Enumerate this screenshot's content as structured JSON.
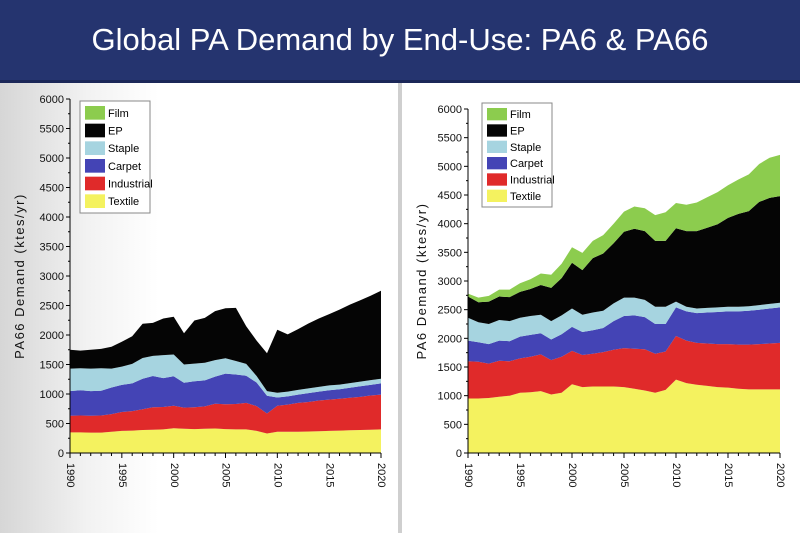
{
  "slide": {
    "title": "Global PA Demand by End-Use: PA6 & PA66"
  },
  "colors": {
    "banner": "#25346f",
    "Textile": "#f4f25f",
    "Industrial": "#e02a2a",
    "Carpet": "#4444b5",
    "Staple": "#a6d4e0",
    "EP": "#050505",
    "Film": "#8ccc4e"
  },
  "chart_data": [
    {
      "type": "area",
      "stacked": true,
      "title": "",
      "ylabel": "PA66 Demand (ktes/yr)",
      "xlabel": "",
      "ylim": [
        0,
        6000
      ],
      "yticks": [
        0,
        500,
        1000,
        1500,
        2000,
        2500,
        3000,
        3500,
        4000,
        4500,
        5000,
        5500,
        6000
      ],
      "xticks": [
        1990,
        1995,
        2000,
        2005,
        2010,
        2015,
        2020
      ],
      "legend": [
        "Film",
        "EP",
        "Staple",
        "Carpet",
        "Industrial",
        "Textile"
      ],
      "legend_position": "top-left",
      "x": [
        1990,
        1991,
        1992,
        1993,
        1994,
        1995,
        1996,
        1997,
        1998,
        1999,
        2000,
        2001,
        2002,
        2003,
        2004,
        2005,
        2006,
        2007,
        2008,
        2009,
        2010,
        2011,
        2012,
        2013,
        2014,
        2015,
        2016,
        2017,
        2018,
        2019,
        2020
      ],
      "series": [
        {
          "name": "Textile",
          "values": [
            350,
            350,
            345,
            345,
            360,
            375,
            380,
            390,
            395,
            400,
            420,
            410,
            405,
            410,
            415,
            405,
            400,
            400,
            375,
            330,
            360,
            360,
            360,
            365,
            370,
            375,
            380,
            385,
            390,
            395,
            400
          ]
        },
        {
          "name": "Industrial",
          "values": [
            280,
            285,
            285,
            290,
            300,
            320,
            330,
            350,
            380,
            380,
            380,
            360,
            370,
            380,
            420,
            420,
            430,
            450,
            420,
            340,
            440,
            460,
            490,
            500,
            520,
            530,
            540,
            550,
            560,
            580,
            590
          ]
        },
        {
          "name": "Carpet",
          "values": [
            420,
            430,
            420,
            420,
            450,
            460,
            470,
            520,
            530,
            490,
            500,
            420,
            440,
            440,
            460,
            520,
            500,
            460,
            400,
            300,
            140,
            140,
            140,
            150,
            150,
            160,
            160,
            170,
            180,
            180,
            190
          ]
        },
        {
          "name": "Staple",
          "values": [
            380,
            370,
            380,
            380,
            320,
            310,
            330,
            350,
            340,
            390,
            370,
            310,
            300,
            300,
            280,
            260,
            230,
            200,
            110,
            80,
            80,
            80,
            80,
            80,
            80,
            80,
            80,
            80,
            80,
            80,
            80
          ]
        },
        {
          "name": "EP",
          "values": [
            320,
            300,
            320,
            330,
            370,
            420,
            470,
            580,
            560,
            620,
            640,
            530,
            730,
            760,
            830,
            850,
            900,
            640,
            600,
            640,
            1070,
            970,
            1030,
            1100,
            1160,
            1210,
            1270,
            1330,
            1380,
            1430,
            1490
          ]
        },
        {
          "name": "Film",
          "values": [
            0,
            0,
            0,
            0,
            0,
            0,
            0,
            0,
            0,
            0,
            0,
            0,
            0,
            0,
            0,
            0,
            0,
            0,
            0,
            0,
            0,
            0,
            0,
            0,
            0,
            0,
            0,
            0,
            0,
            0,
            0
          ]
        }
      ]
    },
    {
      "type": "area",
      "stacked": true,
      "title": "",
      "ylabel": "PA6 Demand (ktes/yr)",
      "xlabel": "",
      "ylim": [
        0,
        6000
      ],
      "yticks": [
        0,
        500,
        1000,
        1500,
        2000,
        2500,
        3000,
        3500,
        4000,
        4500,
        5000,
        5500,
        6000
      ],
      "xticks": [
        1990,
        1995,
        2000,
        2005,
        2010,
        2015,
        2020
      ],
      "legend": [
        "Film",
        "EP",
        "Staple",
        "Carpet",
        "Industrial",
        "Textile"
      ],
      "legend_position": "top-left",
      "x": [
        1990,
        1991,
        1992,
        1993,
        1994,
        1995,
        1996,
        1997,
        1998,
        1999,
        2000,
        2001,
        2002,
        2003,
        2004,
        2005,
        2006,
        2007,
        2008,
        2009,
        2010,
        2011,
        2012,
        2013,
        2014,
        2015,
        2016,
        2017,
        2018,
        2019,
        2020
      ],
      "series": [
        {
          "name": "Textile",
          "values": [
            950,
            950,
            960,
            980,
            1000,
            1050,
            1060,
            1080,
            1020,
            1050,
            1200,
            1150,
            1160,
            1160,
            1160,
            1150,
            1120,
            1090,
            1050,
            1100,
            1280,
            1220,
            1190,
            1170,
            1150,
            1140,
            1120,
            1110,
            1110,
            1110,
            1110
          ]
        },
        {
          "name": "Industrial",
          "values": [
            650,
            640,
            600,
            630,
            600,
            600,
            620,
            640,
            600,
            630,
            580,
            560,
            570,
            600,
            640,
            680,
            700,
            720,
            680,
            670,
            760,
            740,
            730,
            740,
            750,
            760,
            770,
            780,
            790,
            800,
            810
          ]
        },
        {
          "name": "Carpet",
          "values": [
            360,
            340,
            340,
            350,
            350,
            380,
            380,
            370,
            360,
            390,
            420,
            400,
            410,
            420,
            500,
            560,
            580,
            560,
            520,
            480,
            500,
            510,
            520,
            540,
            560,
            570,
            580,
            590,
            600,
            610,
            620
          ]
        },
        {
          "name": "Staple",
          "values": [
            400,
            350,
            350,
            360,
            350,
            330,
            330,
            320,
            320,
            330,
            320,
            300,
            310,
            300,
            310,
            320,
            310,
            300,
            300,
            300,
            100,
            80,
            80,
            80,
            80,
            80,
            80,
            80,
            80,
            80,
            80
          ]
        },
        {
          "name": "EP",
          "values": [
            370,
            350,
            390,
            410,
            420,
            450,
            470,
            520,
            580,
            650,
            800,
            780,
            950,
            1000,
            1050,
            1150,
            1200,
            1200,
            1150,
            1150,
            1280,
            1320,
            1350,
            1400,
            1450,
            1550,
            1620,
            1660,
            1800,
            1850,
            1860
          ]
        },
        {
          "name": "Film",
          "values": [
            50,
            80,
            100,
            120,
            130,
            150,
            170,
            200,
            230,
            250,
            270,
            300,
            300,
            320,
            340,
            350,
            390,
            400,
            450,
            500,
            440,
            460,
            500,
            530,
            560,
            570,
            600,
            640,
            660,
            700,
            720
          ]
        }
      ]
    }
  ]
}
